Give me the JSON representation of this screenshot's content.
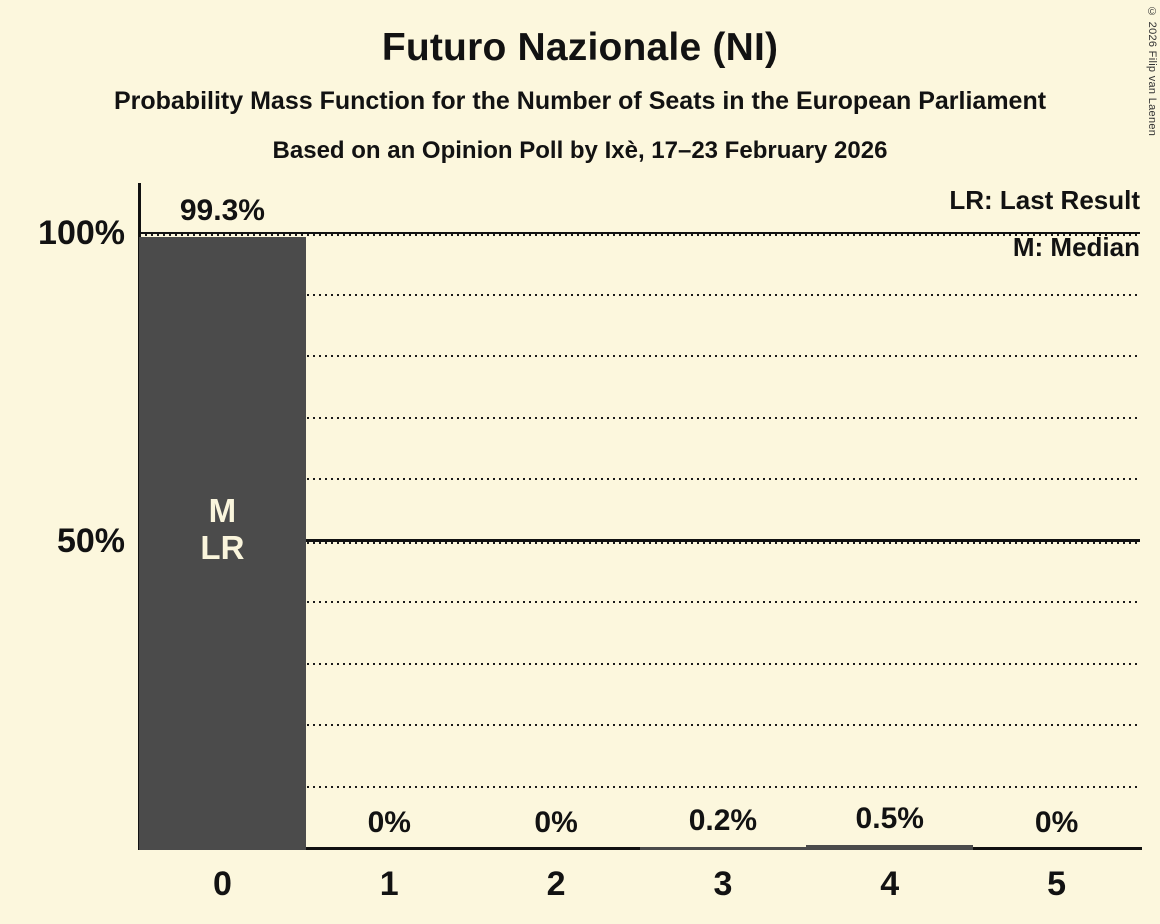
{
  "header": {
    "title": "Futuro Nazionale (NI)",
    "subtitle": "Probability Mass Function for the Number of Seats in the European Parliament",
    "poll_line": "Based on an Opinion Poll by Ixè, 17–23 February 2026",
    "copyright": "© 2026 Filip van Laenen"
  },
  "legend": {
    "last_result": "LR: Last Result",
    "median": "M: Median"
  },
  "colors": {
    "background": "#FCF7DD",
    "bar": "#4B4B4B",
    "text": "#121212",
    "bar_label": "#FAF5DC",
    "line": "#111111"
  },
  "chart_data": {
    "type": "bar",
    "title": "Futuro Nazionale (NI)",
    "categories": [
      "0",
      "1",
      "2",
      "3",
      "4",
      "5"
    ],
    "values": [
      99.3,
      0,
      0,
      0.2,
      0.5,
      0
    ],
    "value_labels": [
      "99.3%",
      "0%",
      "0%",
      "0.2%",
      "0.5%",
      "0%"
    ],
    "bar_annotations": [
      [
        "M",
        "LR"
      ],
      [],
      [],
      [],
      [],
      []
    ],
    "xlabel": "",
    "ylabel": "",
    "ylim": [
      0,
      100
    ],
    "yticks": [
      {
        "pct": 50,
        "label": "50%"
      },
      {
        "pct": 100,
        "label": "100%"
      }
    ],
    "dotted_gridlines_pct": [
      10,
      20,
      30,
      40,
      60,
      70,
      80,
      90
    ],
    "grid": true,
    "legend_position": "top-right"
  }
}
